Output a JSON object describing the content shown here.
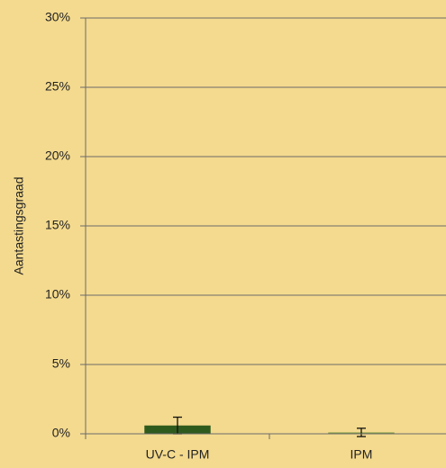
{
  "chart_data": {
    "type": "bar",
    "y_label": "Aantastingsgraad",
    "categories": [
      "UV-C - IPM",
      "IPM"
    ],
    "values": [
      0.6,
      0.1
    ],
    "errors": [
      0.6,
      0.3
    ],
    "colors": [
      "#2f5a1e",
      "#7f9a45"
    ],
    "ylim": [
      0,
      30
    ],
    "yticks": [
      {
        "value": 0,
        "label": "0%"
      },
      {
        "value": 5,
        "label": "5%"
      },
      {
        "value": 10,
        "label": "10%"
      },
      {
        "value": 15,
        "label": "15%"
      },
      {
        "value": 20,
        "label": "20%"
      },
      {
        "value": 25,
        "label": "25%"
      },
      {
        "value": 30,
        "label": "30%"
      }
    ],
    "grid": true
  }
}
